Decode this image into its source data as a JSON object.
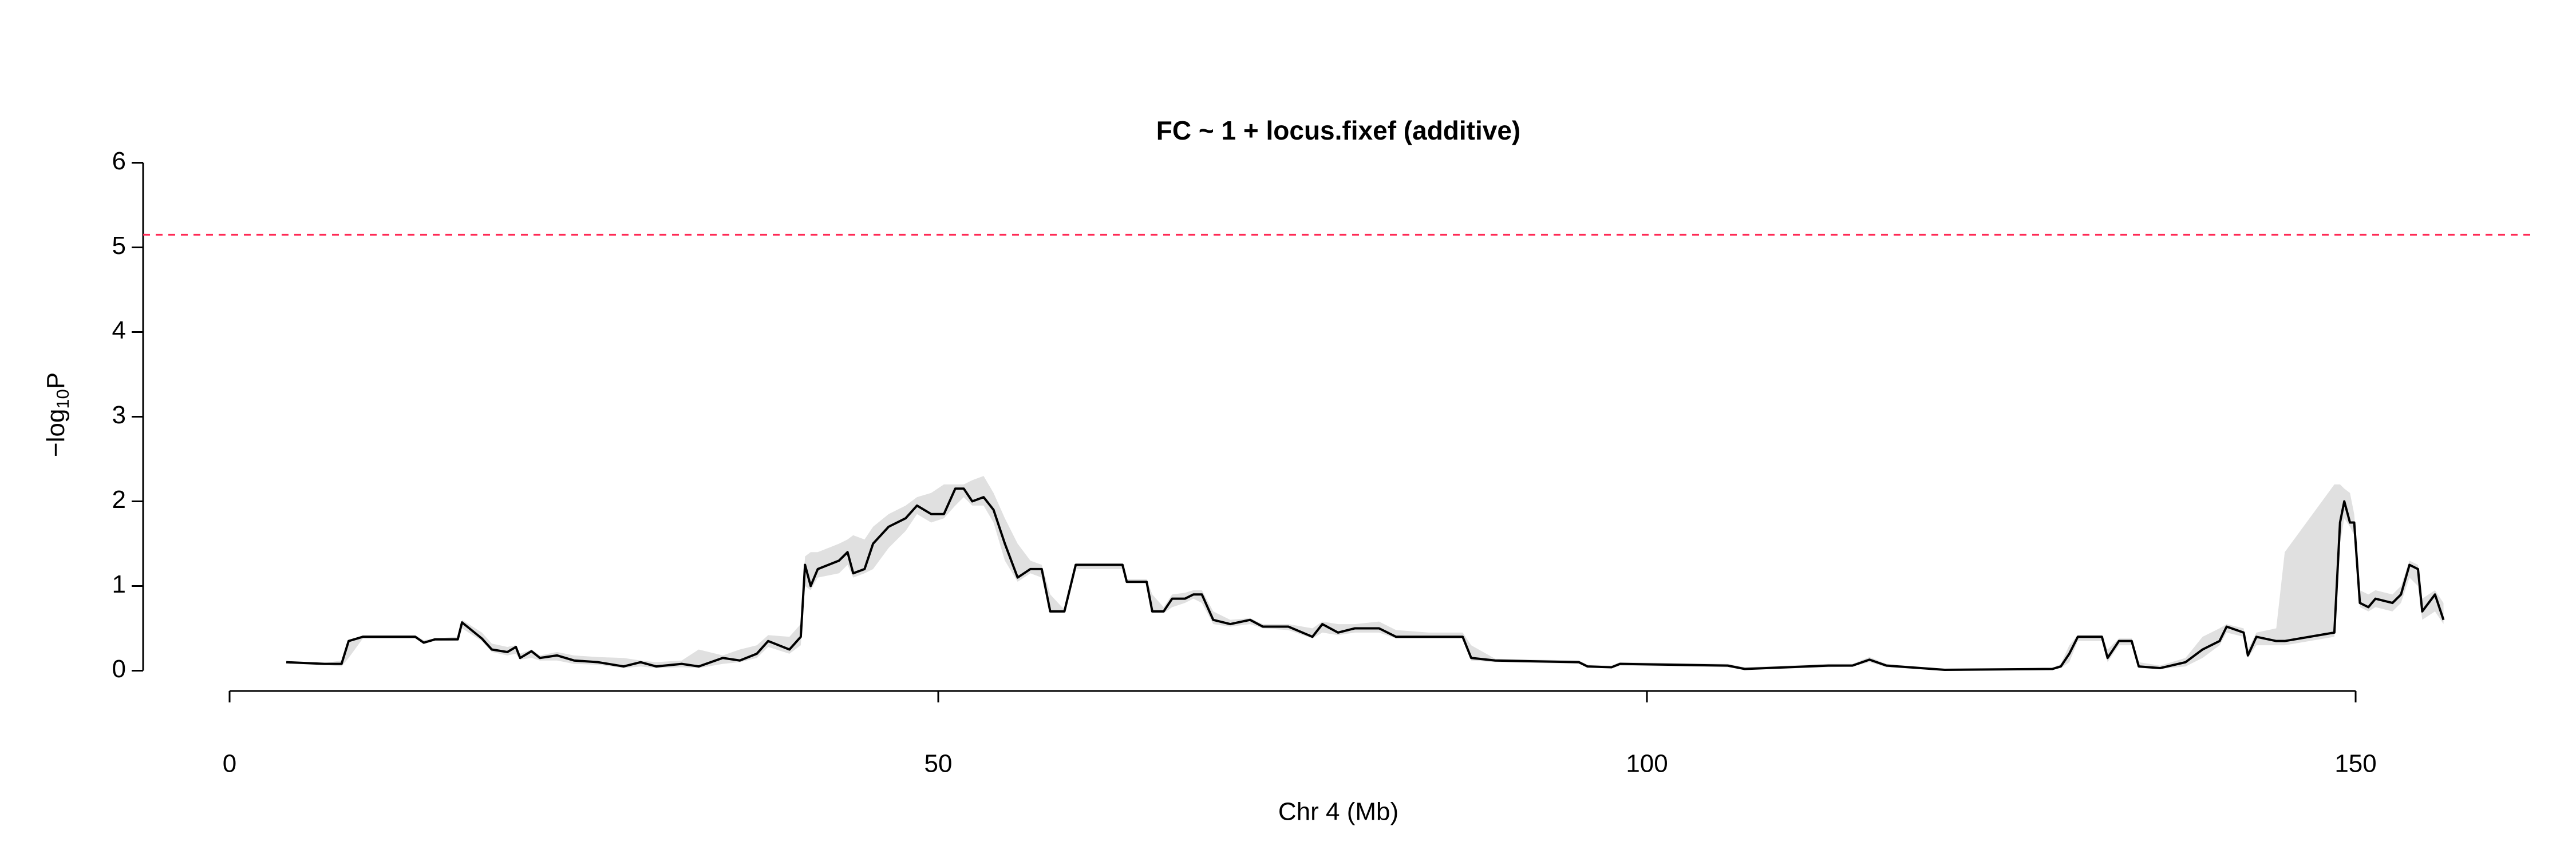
{
  "chart_data": {
    "type": "line",
    "title": "FC ~ 1 + locus.fixef (additive)",
    "xlabel": "Chr 4 (Mb)",
    "ylabel": {
      "prefix": "−log",
      "sub": "10",
      "suffix": "P"
    },
    "xlim": [
      -6.1,
      162.6
    ],
    "ylim": [
      -0.24,
      6.24
    ],
    "xticks": [
      0,
      50,
      100,
      150
    ],
    "yticks": [
      0,
      1,
      2,
      3,
      4,
      5,
      6
    ],
    "color": "#000000",
    "band_color": "#e0e0e0",
    "threshold": 5.15,
    "threshold_color": "#ff2a55",
    "x": [
      4.0,
      6.7,
      7.9,
      8.4,
      9.4,
      13.1,
      13.7,
      14.5,
      16.1,
      16.4,
      17.8,
      18.5,
      19.6,
      20.2,
      20.5,
      21.3,
      21.9,
      23.1,
      24.3,
      26.0,
      27.8,
      29.0,
      30.1,
      31.9,
      33.1,
      34.8,
      36.0,
      37.2,
      38.0,
      39.5,
      40.3,
      40.6,
      41.0,
      41.5,
      43.0,
      43.6,
      44.0,
      44.8,
      45.4,
      46.5,
      47.7,
      48.5,
      49.5,
      50.4,
      51.2,
      51.8,
      52.4,
      53.2,
      53.9,
      54.7,
      55.6,
      56.5,
      57.3,
      57.9,
      58.9,
      59.7,
      63.0,
      63.3,
      64.7,
      65.1,
      65.9,
      66.5,
      67.4,
      68.0,
      68.6,
      69.4,
      70.6,
      72.0,
      72.9,
      74.7,
      76.4,
      77.1,
      78.2,
      79.4,
      81.1,
      82.3,
      84.6,
      87.0,
      87.6,
      89.3,
      95.2,
      95.8,
      97.5,
      98.1,
      105.7,
      106.9,
      112.8,
      114.5,
      115.7,
      116.9,
      121.0,
      128.6,
      129.2,
      129.8,
      130.4,
      132.1,
      132.5,
      133.3,
      134.2,
      134.7,
      136.2,
      138.0,
      139.2,
      140.4,
      140.9,
      142.1,
      142.4,
      143.0,
      144.4,
      145.0,
      148.5,
      148.9,
      149.2,
      149.6,
      149.9,
      150.3,
      150.9,
      151.4,
      152.6,
      153.2,
      153.8,
      154.4,
      154.7,
      155.6,
      156.2
    ],
    "values": [
      0.1,
      0.08,
      0.08,
      0.35,
      0.4,
      0.4,
      0.33,
      0.37,
      0.37,
      0.57,
      0.38,
      0.25,
      0.22,
      0.28,
      0.15,
      0.23,
      0.15,
      0.18,
      0.12,
      0.1,
      0.05,
      0.1,
      0.05,
      0.08,
      0.05,
      0.15,
      0.12,
      0.2,
      0.35,
      0.25,
      0.4,
      1.25,
      1.0,
      1.2,
      1.3,
      1.4,
      1.15,
      1.2,
      1.5,
      1.7,
      1.8,
      1.95,
      1.85,
      1.85,
      2.15,
      2.15,
      2.0,
      2.05,
      1.9,
      1.5,
      1.1,
      1.2,
      1.2,
      0.7,
      0.7,
      1.25,
      1.25,
      1.05,
      1.05,
      0.7,
      0.7,
      0.85,
      0.85,
      0.9,
      0.9,
      0.6,
      0.55,
      0.6,
      0.52,
      0.52,
      0.4,
      0.55,
      0.45,
      0.5,
      0.5,
      0.4,
      0.4,
      0.4,
      0.15,
      0.12,
      0.1,
      0.05,
      0.04,
      0.08,
      0.06,
      0.02,
      0.06,
      0.06,
      0.13,
      0.06,
      0.01,
      0.02,
      0.05,
      0.2,
      0.4,
      0.4,
      0.15,
      0.35,
      0.35,
      0.05,
      0.03,
      0.1,
      0.25,
      0.35,
      0.52,
      0.45,
      0.18,
      0.4,
      0.35,
      0.35,
      0.45,
      1.75,
      2.0,
      1.75,
      1.75,
      0.8,
      0.75,
      0.85,
      0.8,
      0.9,
      1.25,
      1.2,
      0.7,
      0.9,
      0.6
    ],
    "band_lower": [
      0.08,
      0.07,
      0.05,
      0.15,
      0.38,
      0.38,
      0.32,
      0.35,
      0.36,
      0.5,
      0.35,
      0.22,
      0.18,
      0.2,
      0.13,
      0.15,
      0.12,
      0.12,
      0.08,
      0.07,
      0.03,
      0.05,
      0.03,
      0.04,
      0.03,
      0.08,
      0.1,
      0.15,
      0.28,
      0.2,
      0.3,
      1.0,
      0.95,
      1.1,
      1.15,
      1.25,
      1.1,
      1.15,
      1.2,
      1.45,
      1.65,
      1.85,
      1.75,
      1.8,
      1.95,
      2.05,
      1.95,
      1.95,
      1.75,
      1.3,
      1.05,
      1.15,
      1.1,
      0.68,
      0.68,
      1.2,
      1.2,
      1.03,
      1.03,
      0.68,
      0.68,
      0.75,
      0.8,
      0.85,
      0.8,
      0.55,
      0.52,
      0.55,
      0.5,
      0.48,
      0.38,
      0.45,
      0.42,
      0.45,
      0.45,
      0.38,
      0.38,
      0.38,
      0.12,
      0.1,
      0.08,
      0.04,
      0.03,
      0.06,
      0.04,
      0.01,
      0.04,
      0.05,
      0.1,
      0.04,
      0.0,
      0.01,
      0.03,
      0.1,
      0.35,
      0.35,
      0.1,
      0.3,
      0.3,
      0.03,
      0.02,
      0.05,
      0.15,
      0.3,
      0.45,
      0.4,
      0.15,
      0.3,
      0.3,
      0.3,
      0.4,
      1.5,
      1.8,
      1.7,
      1.6,
      0.75,
      0.7,
      0.75,
      0.7,
      0.8,
      1.1,
      1.0,
      0.6,
      0.7,
      0.55
    ],
    "band_upper": [
      0.1,
      0.09,
      0.12,
      0.35,
      0.42,
      0.42,
      0.36,
      0.38,
      0.4,
      0.6,
      0.45,
      0.32,
      0.28,
      0.3,
      0.2,
      0.25,
      0.18,
      0.22,
      0.18,
      0.16,
      0.15,
      0.12,
      0.1,
      0.12,
      0.25,
      0.18,
      0.25,
      0.3,
      0.42,
      0.4,
      0.55,
      1.35,
      1.4,
      1.4,
      1.5,
      1.55,
      1.6,
      1.55,
      1.7,
      1.85,
      1.95,
      2.05,
      2.1,
      2.2,
      2.2,
      2.2,
      2.25,
      2.3,
      2.1,
      1.8,
      1.5,
      1.3,
      1.25,
      0.9,
      0.72,
      1.27,
      1.27,
      1.08,
      1.08,
      0.9,
      0.75,
      0.9,
      0.92,
      0.95,
      0.95,
      0.7,
      0.6,
      0.62,
      0.55,
      0.55,
      0.5,
      0.58,
      0.55,
      0.55,
      0.58,
      0.48,
      0.45,
      0.45,
      0.3,
      0.14,
      0.12,
      0.07,
      0.06,
      0.1,
      0.08,
      0.04,
      0.08,
      0.08,
      0.16,
      0.08,
      0.02,
      0.03,
      0.08,
      0.3,
      0.42,
      0.42,
      0.25,
      0.38,
      0.38,
      0.1,
      0.06,
      0.15,
      0.4,
      0.5,
      0.55,
      0.5,
      0.25,
      0.45,
      0.5,
      1.4,
      2.2,
      2.2,
      2.15,
      2.1,
      1.85,
      0.95,
      0.9,
      0.95,
      0.9,
      1.0,
      1.3,
      1.25,
      0.85,
      0.95,
      0.8
    ]
  }
}
